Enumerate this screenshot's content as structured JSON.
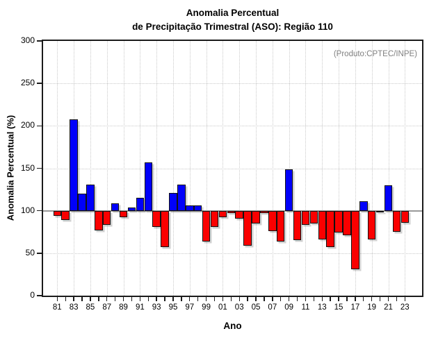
{
  "title": {
    "line1": "Anomalia Percentual",
    "line2": "de Precipitação Trimestral (ASO): Região 110"
  },
  "annotation": {
    "text": "(Produto:CPTEC/INPE)",
    "color": "#7f7f7f"
  },
  "colors": {
    "bar_above_baseline": "#0000fa",
    "bar_below_baseline": "#fa0000",
    "bar_border": "#111111",
    "baseline_line": "#999999",
    "grid": "#c9c9c9",
    "axis": "#1a1a1a"
  },
  "chart_data": {
    "type": "bar",
    "title": "Anomalia Percentual de Precipitação Trimestral (ASO): Região 110",
    "xlabel": "Ano",
    "ylabel": "Anomalia Percentual (%)",
    "ylim": [
      0,
      300
    ],
    "yticks": [
      0,
      50,
      100,
      150,
      200,
      250,
      300
    ],
    "baseline": 100,
    "grid": "dotted, vertical lines at labeled years, horizontal at y ticks",
    "color_rule": "value >= 100 blue, value < 100 red",
    "categories": [
      "81",
      "82",
      "83",
      "84",
      "85",
      "86",
      "87",
      "88",
      "89",
      "90",
      "91",
      "92",
      "93",
      "94",
      "95",
      "96",
      "97",
      "98",
      "99",
      "00",
      "01",
      "02",
      "03",
      "04",
      "05",
      "06",
      "07",
      "08",
      "09",
      "10",
      "11",
      "12",
      "13",
      "14",
      "15",
      "16",
      "17",
      "18",
      "19",
      "20",
      "21",
      "22",
      "23"
    ],
    "values": [
      94,
      89,
      208,
      120,
      131,
      77,
      83,
      109,
      92,
      104,
      115,
      157,
      81,
      57,
      121,
      131,
      106,
      106,
      64,
      81,
      92,
      97,
      91,
      59,
      85,
      97,
      76,
      64,
      149,
      65,
      83,
      85,
      66,
      57,
      74,
      71,
      31,
      111,
      66,
      98,
      130,
      75,
      86
    ],
    "labeled_categories": [
      "81",
      "83",
      "85",
      "87",
      "89",
      "91",
      "93",
      "95",
      "97",
      "99",
      "01",
      "03",
      "05",
      "07",
      "09",
      "11",
      "13",
      "15",
      "17",
      "19",
      "21",
      "23"
    ]
  }
}
